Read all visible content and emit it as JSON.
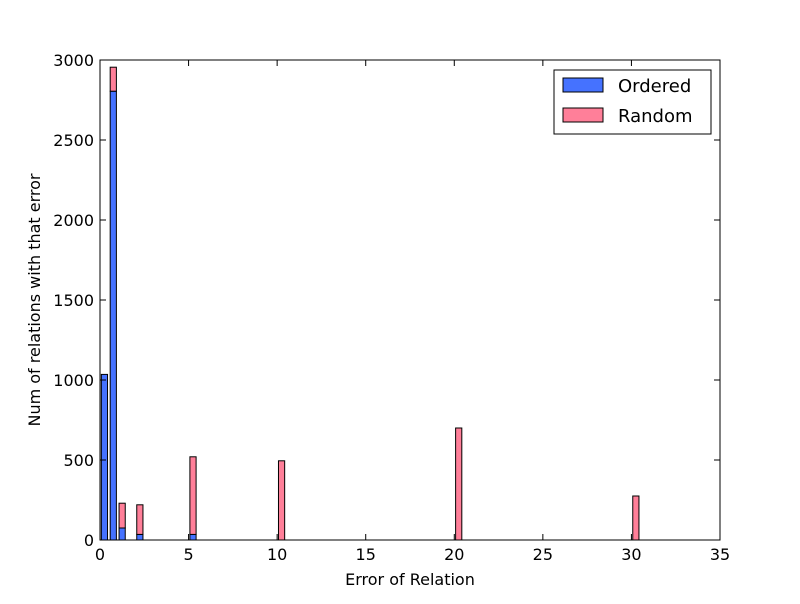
{
  "chart_data": {
    "type": "bar",
    "stacked": true,
    "title": "",
    "xlabel": "Error of Relation",
    "ylabel": "Num of relations with that error",
    "xlim": [
      0,
      35
    ],
    "ylim": [
      0,
      3000
    ],
    "xticks": [
      0,
      5,
      10,
      15,
      20,
      25,
      30,
      35
    ],
    "yticks": [
      0,
      500,
      1000,
      1500,
      2000,
      2500,
      3000
    ],
    "grid": false,
    "legend_position": "top-right",
    "bin_width": 0.35,
    "x": [
      0.25,
      0.75,
      1.25,
      2.25,
      5.25,
      10.25,
      20.25,
      30.25
    ],
    "series": [
      {
        "name": "Ordered",
        "color": "#4572ff",
        "values": [
          1035,
          2805,
          75,
          35,
          35,
          0,
          0,
          0
        ]
      },
      {
        "name": "Random",
        "color": "#ff7f99",
        "values": [
          0,
          150,
          155,
          185,
          485,
          495,
          700,
          275
        ]
      }
    ]
  }
}
